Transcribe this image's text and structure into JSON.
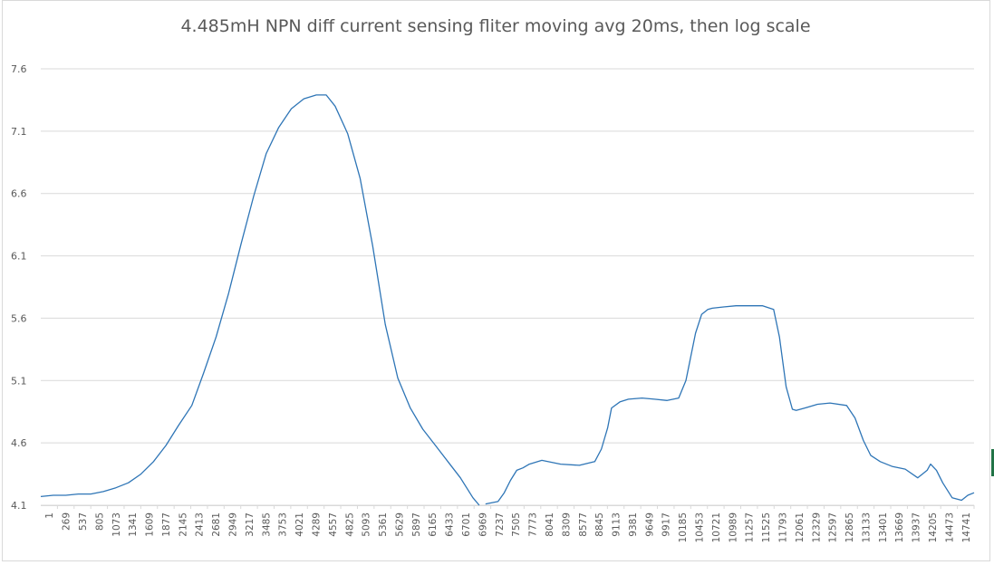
{
  "chart_data": {
    "type": "line",
    "title": "4.485mH NPN diff current sensing fliter moving avg 20ms, then log scale",
    "xlabel": "",
    "ylabel": "",
    "ylim": [
      4.1,
      7.6
    ],
    "xlim": [
      1,
      14900
    ],
    "y_ticks": [
      "4.1",
      "4.6",
      "5.1",
      "5.6",
      "6.1",
      "6.6",
      "7.1",
      "7.6"
    ],
    "x_tick_labels": [
      "1",
      "269",
      "537",
      "805",
      "1073",
      "1341",
      "1609",
      "1877",
      "2145",
      "2413",
      "2681",
      "2949",
      "3217",
      "3485",
      "3753",
      "4021",
      "4289",
      "4557",
      "4825",
      "5093",
      "5361",
      "5629",
      "5897",
      "6165",
      "6433",
      "6701",
      "6969",
      "7237",
      "7505",
      "7773",
      "8041",
      "8309",
      "8577",
      "8845",
      "9113",
      "9381",
      "9649",
      "9917",
      "10185",
      "10453",
      "10721",
      "10989",
      "11257",
      "11525",
      "11793",
      "12061",
      "12329",
      "12597",
      "12865",
      "13133",
      "13401",
      "13669",
      "13937",
      "14205",
      "14473",
      "14741"
    ],
    "grid": "horizontal",
    "legend": "none",
    "series_color": "#2e75b6",
    "series": [
      {
        "name": "",
        "x": [
          1,
          200,
          400,
          600,
          800,
          1000,
          1200,
          1400,
          1600,
          1800,
          2000,
          2200,
          2413,
          2600,
          2800,
          3000,
          3200,
          3400,
          3600,
          3800,
          4000,
          4200,
          4400,
          4557,
          4700,
          4900,
          5100,
          5300,
          5500,
          5700,
          5900,
          6100,
          6300,
          6500,
          6700,
          6900,
          7000
        ],
        "y": [
          4.17,
          4.18,
          4.18,
          4.19,
          4.19,
          4.21,
          4.24,
          4.28,
          4.35,
          4.45,
          4.58,
          4.74,
          4.9,
          5.16,
          5.45,
          5.8,
          6.2,
          6.58,
          6.92,
          7.13,
          7.28,
          7.36,
          7.39,
          7.39,
          7.3,
          7.08,
          6.72,
          6.18,
          5.55,
          5.12,
          4.88,
          4.71,
          4.58,
          4.45,
          4.32,
          4.16,
          4.1
        ]
      },
      {
        "name": "",
        "x": [
          7100,
          7300,
          7400,
          7500,
          7600,
          7700,
          7800,
          8000,
          8300,
          8600,
          8845,
          8950,
          9050,
          9113,
          9250,
          9381,
          9600,
          9800,
          10000,
          10185,
          10300,
          10453,
          10550,
          10650,
          10721,
          10900,
          11100,
          11300,
          11525,
          11700,
          11793,
          11900,
          12000,
          12061,
          12200,
          12400,
          12600,
          12865,
          13000,
          13133,
          13250,
          13401,
          13600,
          13800,
          14000,
          14150,
          14205,
          14300,
          14400,
          14550,
          14700,
          14800,
          14900
        ],
        "y": [
          4.11,
          4.13,
          4.2,
          4.3,
          4.38,
          4.4,
          4.43,
          4.46,
          4.43,
          4.42,
          4.45,
          4.55,
          4.72,
          4.88,
          4.93,
          4.95,
          4.96,
          4.95,
          4.94,
          4.96,
          5.1,
          5.48,
          5.63,
          5.67,
          5.68,
          5.69,
          5.7,
          5.7,
          5.7,
          5.67,
          5.45,
          5.05,
          4.87,
          4.86,
          4.88,
          4.91,
          4.92,
          4.9,
          4.8,
          4.62,
          4.5,
          4.45,
          4.41,
          4.39,
          4.32,
          4.38,
          4.43,
          4.38,
          4.28,
          4.16,
          4.14,
          4.18,
          4.2
        ]
      }
    ]
  }
}
